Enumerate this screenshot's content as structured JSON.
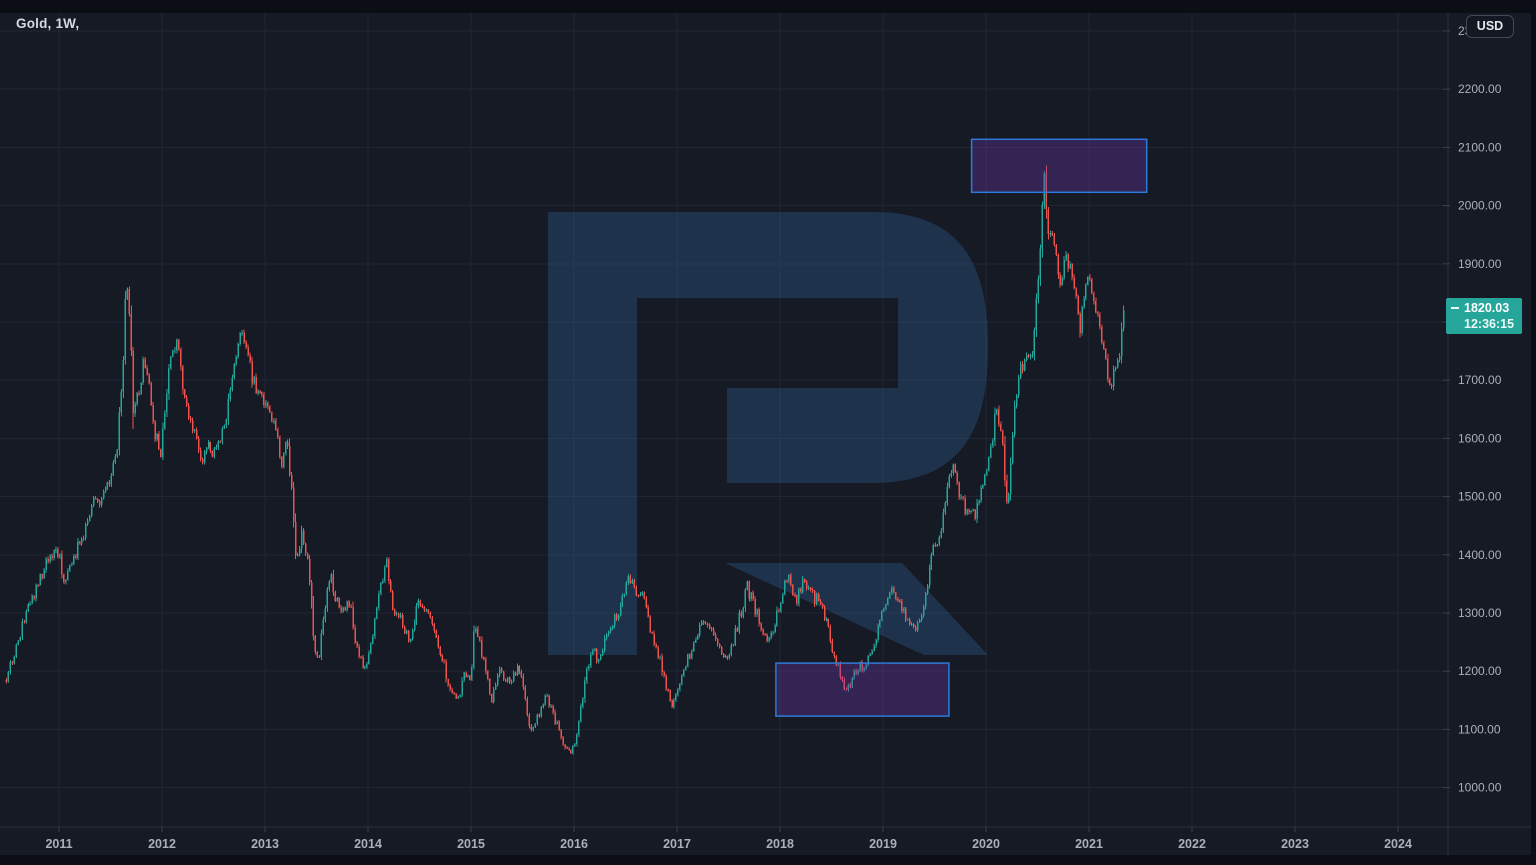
{
  "window": {
    "title": "Gold, 1W,"
  },
  "currency_button": {
    "label": "USD"
  },
  "price_badge": {
    "price": "1820.03",
    "countdown": "12:36:15"
  },
  "colors": {
    "background": "#161a25",
    "chrome_border": "#0b0e15",
    "grid": "#212633",
    "axis_line": "#2b303c",
    "tick": "#3a404c",
    "axis_text": "#abafba",
    "title_text": "#d6d9e0",
    "up": "#26a69a",
    "down": "#ef5350",
    "watermark": "#2a5580",
    "rect_fill": "rgba(116,58,178,0.33)",
    "rect_border": "#2e79d9",
    "badge_text": "#ffffff"
  },
  "y_axis": {
    "top_value": 2300,
    "step": 100,
    "labels": [
      "2300.00",
      "2200.00",
      "2100.00",
      "2000.00",
      "1900.00",
      "1800.00",
      "1700.00",
      "1600.00",
      "1500.00",
      "1400.00",
      "1300.00",
      "1200.00",
      "1100.00",
      "1000.00"
    ]
  },
  "x_axis": {
    "start_value": 2011,
    "labels": [
      "2011",
      "2012",
      "2013",
      "2014",
      "2015",
      "2016",
      "2017",
      "2018",
      "2019",
      "2020",
      "2021",
      "2022",
      "2023",
      "2024"
    ]
  },
  "chart_data": {
    "type": "candlestick",
    "symbol": "Gold",
    "timeframe": "1W",
    "currency": "USD",
    "last_price": 1820.03,
    "countdown": "12:36:15",
    "price_high_max": 2075,
    "price_low_min": 1046,
    "x_visible_range": [
      2010.45,
      2024.5
    ],
    "y_visible_range": [
      930,
      2330
    ],
    "anchors": [
      [
        2010.49,
        1185
      ],
      [
        2010.58,
        1235
      ],
      [
        2010.68,
        1300
      ],
      [
        2010.78,
        1340
      ],
      [
        2010.88,
        1385
      ],
      [
        2010.97,
        1420
      ],
      [
        2011.06,
        1350
      ],
      [
        2011.15,
        1400
      ],
      [
        2011.25,
        1440
      ],
      [
        2011.33,
        1500
      ],
      [
        2011.42,
        1495
      ],
      [
        2011.5,
        1530
      ],
      [
        2011.57,
        1590
      ],
      [
        2011.62,
        1720
      ],
      [
        2011.655,
        1890
      ],
      [
        2011.69,
        1810
      ],
      [
        2011.72,
        1650
      ],
      [
        2011.78,
        1680
      ],
      [
        2011.82,
        1740
      ],
      [
        2011.87,
        1690
      ],
      [
        2011.93,
        1610
      ],
      [
        2011.99,
        1570
      ],
      [
        2012.07,
        1720
      ],
      [
        2012.15,
        1775
      ],
      [
        2012.22,
        1660
      ],
      [
        2012.3,
        1620
      ],
      [
        2012.38,
        1560
      ],
      [
        2012.45,
        1590
      ],
      [
        2012.52,
        1570
      ],
      [
        2012.6,
        1620
      ],
      [
        2012.68,
        1690
      ],
      [
        2012.75,
        1770
      ],
      [
        2012.8,
        1780
      ],
      [
        2012.87,
        1710
      ],
      [
        2012.95,
        1670
      ],
      [
        2013.03,
        1650
      ],
      [
        2013.1,
        1610
      ],
      [
        2013.16,
        1560
      ],
      [
        2013.22,
        1590
      ],
      [
        2013.27,
        1480
      ],
      [
        2013.3,
        1390
      ],
      [
        2013.36,
        1440
      ],
      [
        2013.42,
        1390
      ],
      [
        2013.48,
        1230
      ],
      [
        2013.52,
        1220
      ],
      [
        2013.58,
        1310
      ],
      [
        2013.63,
        1370
      ],
      [
        2013.68,
        1330
      ],
      [
        2013.75,
        1310
      ],
      [
        2013.82,
        1320
      ],
      [
        2013.88,
        1250
      ],
      [
        2013.96,
        1205
      ],
      [
        2014.03,
        1240
      ],
      [
        2014.1,
        1330
      ],
      [
        2014.18,
        1385
      ],
      [
        2014.25,
        1300
      ],
      [
        2014.32,
        1290
      ],
      [
        2014.4,
        1250
      ],
      [
        2014.48,
        1320
      ],
      [
        2014.55,
        1310
      ],
      [
        2014.63,
        1280
      ],
      [
        2014.72,
        1220
      ],
      [
        2014.8,
        1170
      ],
      [
        2014.87,
        1145
      ],
      [
        2014.93,
        1200
      ],
      [
        2015.0,
        1185
      ],
      [
        2015.04,
        1290
      ],
      [
        2015.12,
        1220
      ],
      [
        2015.2,
        1150
      ],
      [
        2015.28,
        1200
      ],
      [
        2015.36,
        1180
      ],
      [
        2015.44,
        1205
      ],
      [
        2015.52,
        1170
      ],
      [
        2015.58,
        1090
      ],
      [
        2015.65,
        1125
      ],
      [
        2015.72,
        1160
      ],
      [
        2015.78,
        1135
      ],
      [
        2015.84,
        1105
      ],
      [
        2015.9,
        1075
      ],
      [
        2015.96,
        1055
      ],
      [
        2016.03,
        1090
      ],
      [
        2016.1,
        1175
      ],
      [
        2016.17,
        1240
      ],
      [
        2016.24,
        1220
      ],
      [
        2016.32,
        1260
      ],
      [
        2016.4,
        1290
      ],
      [
        2016.47,
        1320
      ],
      [
        2016.53,
        1365
      ],
      [
        2016.6,
        1340
      ],
      [
        2016.68,
        1325
      ],
      [
        2016.76,
        1255
      ],
      [
        2016.84,
        1220
      ],
      [
        2016.9,
        1170
      ],
      [
        2016.96,
        1135
      ],
      [
        2017.03,
        1180
      ],
      [
        2017.1,
        1220
      ],
      [
        2017.18,
        1250
      ],
      [
        2017.26,
        1290
      ],
      [
        2017.33,
        1265
      ],
      [
        2017.4,
        1255
      ],
      [
        2017.48,
        1215
      ],
      [
        2017.55,
        1255
      ],
      [
        2017.62,
        1300
      ],
      [
        2017.68,
        1345
      ],
      [
        2017.75,
        1310
      ],
      [
        2017.82,
        1280
      ],
      [
        2017.9,
        1250
      ],
      [
        2017.97,
        1300
      ],
      [
        2018.03,
        1340
      ],
      [
        2018.08,
        1360
      ],
      [
        2018.15,
        1320
      ],
      [
        2018.22,
        1350
      ],
      [
        2018.3,
        1330
      ],
      [
        2018.38,
        1320
      ],
      [
        2018.45,
        1290
      ],
      [
        2018.52,
        1230
      ],
      [
        2018.6,
        1185
      ],
      [
        2018.65,
        1165
      ],
      [
        2018.72,
        1200
      ],
      [
        2018.8,
        1210
      ],
      [
        2018.88,
        1225
      ],
      [
        2018.96,
        1280
      ],
      [
        2019.04,
        1320
      ],
      [
        2019.1,
        1340
      ],
      [
        2019.18,
        1305
      ],
      [
        2019.26,
        1290
      ],
      [
        2019.34,
        1275
      ],
      [
        2019.42,
        1330
      ],
      [
        2019.48,
        1410
      ],
      [
        2019.55,
        1425
      ],
      [
        2019.62,
        1510
      ],
      [
        2019.68,
        1545
      ],
      [
        2019.75,
        1500
      ],
      [
        2019.82,
        1465
      ],
      [
        2019.89,
        1470
      ],
      [
        2019.96,
        1515
      ],
      [
        2020.03,
        1560
      ],
      [
        2020.1,
        1650
      ],
      [
        2020.16,
        1585
      ],
      [
        2020.21,
        1480
      ],
      [
        2020.27,
        1630
      ],
      [
        2020.33,
        1720
      ],
      [
        2020.4,
        1735
      ],
      [
        2020.46,
        1755
      ],
      [
        2020.52,
        1900
      ],
      [
        2020.565,
        2055
      ],
      [
        2020.61,
        1950
      ],
      [
        2020.66,
        1935
      ],
      [
        2020.71,
        1865
      ],
      [
        2020.76,
        1905
      ],
      [
        2020.82,
        1900
      ],
      [
        2020.87,
        1860
      ],
      [
        2020.91,
        1780
      ],
      [
        2020.95,
        1840
      ],
      [
        2020.99,
        1890
      ],
      [
        2021.04,
        1845
      ],
      [
        2021.09,
        1810
      ],
      [
        2021.13,
        1770
      ],
      [
        2021.17,
        1720
      ],
      [
        2021.21,
        1685
      ],
      [
        2021.26,
        1735
      ],
      [
        2021.3,
        1755
      ],
      [
        2021.33,
        1820.03
      ]
    ],
    "annotations": [
      {
        "shape": "rectangle",
        "time_start": 2019.86,
        "time_end": 2021.56,
        "price_top": 2114,
        "price_bottom": 2023
      },
      {
        "shape": "rectangle",
        "time_start": 2017.96,
        "time_end": 2019.64,
        "price_top": 1214,
        "price_bottom": 1123
      }
    ]
  }
}
